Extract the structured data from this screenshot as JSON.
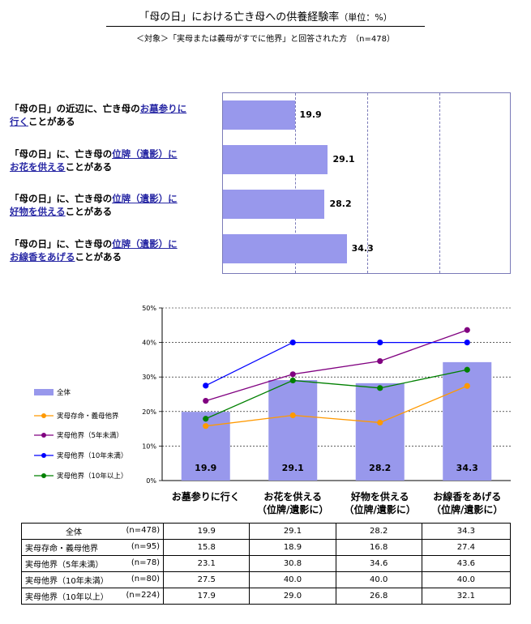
{
  "header": {
    "title": "「母の日」における亡き母への供養経験率",
    "unit": "（単位：%）",
    "subtitle": "＜対象＞「実母または義母がすでに他界」と回答された方　（n=478）"
  },
  "top_chart": {
    "items": [
      {
        "pre": "「母の日」の近辺に、亡き母の",
        "hl1": "お墓参りに",
        "hl2": "行く",
        "post": "ことがある",
        "value": "19.9"
      },
      {
        "pre": "「母の日」に、亡き母の",
        "hl1": "位牌（遺影）に",
        "hl2": "お花を供える",
        "post": "ことがある",
        "value": "29.1"
      },
      {
        "pre": "「母の日」に、亡き母の",
        "hl1": "位牌（遺影）に",
        "hl2": "好物を供える",
        "post": "ことがある",
        "value": "28.2"
      },
      {
        "pre": "「母の日」に、亡き母の",
        "hl1": "位牌（遺影）に",
        "hl2": "お線香をあげる",
        "post": "ことがある",
        "value": "34.3"
      }
    ]
  },
  "combo": {
    "yticks": [
      "0%",
      "10%",
      "20%",
      "30%",
      "40%",
      "50%"
    ],
    "categories": [
      {
        "l1": "お墓参りに行く",
        "l2": ""
      },
      {
        "l1": "お花を供える",
        "l2": "（位牌/遺影に）"
      },
      {
        "l1": "好物を供える",
        "l2": "（位牌/遺影に）"
      },
      {
        "l1": "お線香をあげる",
        "l2": "（位牌/遺影に）"
      }
    ],
    "legend": [
      "全体",
      "実母存命・義母他界",
      "実母他界（5年未満）",
      "実母他界（10年未満）",
      "実母他界（10年以上）"
    ]
  },
  "chart_data": {
    "type": "bar",
    "title": "「母の日」における亡き母への供養経験率",
    "ylim": [
      0,
      50
    ],
    "categories": [
      "お墓参りに行く",
      "お花を供える（位牌/遺影に）",
      "好物を供える（位牌/遺影に）",
      "お線香をあげる（位牌/遺影に）"
    ],
    "series": [
      {
        "name": "全体",
        "kind": "bar",
        "values": [
          19.9,
          29.1,
          28.2,
          34.3
        ],
        "color": "#9898ec"
      },
      {
        "name": "実母存命・義母他界",
        "kind": "line",
        "values": [
          15.8,
          18.9,
          16.8,
          27.4
        ],
        "color": "#ff9900"
      },
      {
        "name": "実母他界（5年未満）",
        "kind": "line",
        "values": [
          23.1,
          30.8,
          34.6,
          43.6
        ],
        "color": "#800080"
      },
      {
        "name": "実母他界（10年未満）",
        "kind": "line",
        "values": [
          27.5,
          40.0,
          40.0,
          40.0
        ],
        "color": "#0000ff"
      },
      {
        "name": "実母他界（10年以上）",
        "kind": "line",
        "values": [
          17.9,
          29.0,
          26.8,
          32.1
        ],
        "color": "#008000"
      }
    ]
  },
  "table": {
    "rows": [
      {
        "name": "全体",
        "n": "(n=478)",
        "values": [
          "19.9",
          "29.1",
          "28.2",
          "34.3"
        ]
      },
      {
        "name": "実母存命・義母他界",
        "n": "(n=95)",
        "values": [
          "15.8",
          "18.9",
          "16.8",
          "27.4"
        ]
      },
      {
        "name": "実母他界（5年未満）",
        "n": "(n=78)",
        "values": [
          "23.1",
          "30.8",
          "34.6",
          "43.6"
        ]
      },
      {
        "name": "実母他界（10年未満）",
        "n": "(n=80)",
        "values": [
          "27.5",
          "40.0",
          "40.0",
          "40.0"
        ]
      },
      {
        "name": "実母他界（10年以上）",
        "n": "(n=224)",
        "values": [
          "17.9",
          "29.0",
          "26.8",
          "32.1"
        ]
      }
    ]
  }
}
